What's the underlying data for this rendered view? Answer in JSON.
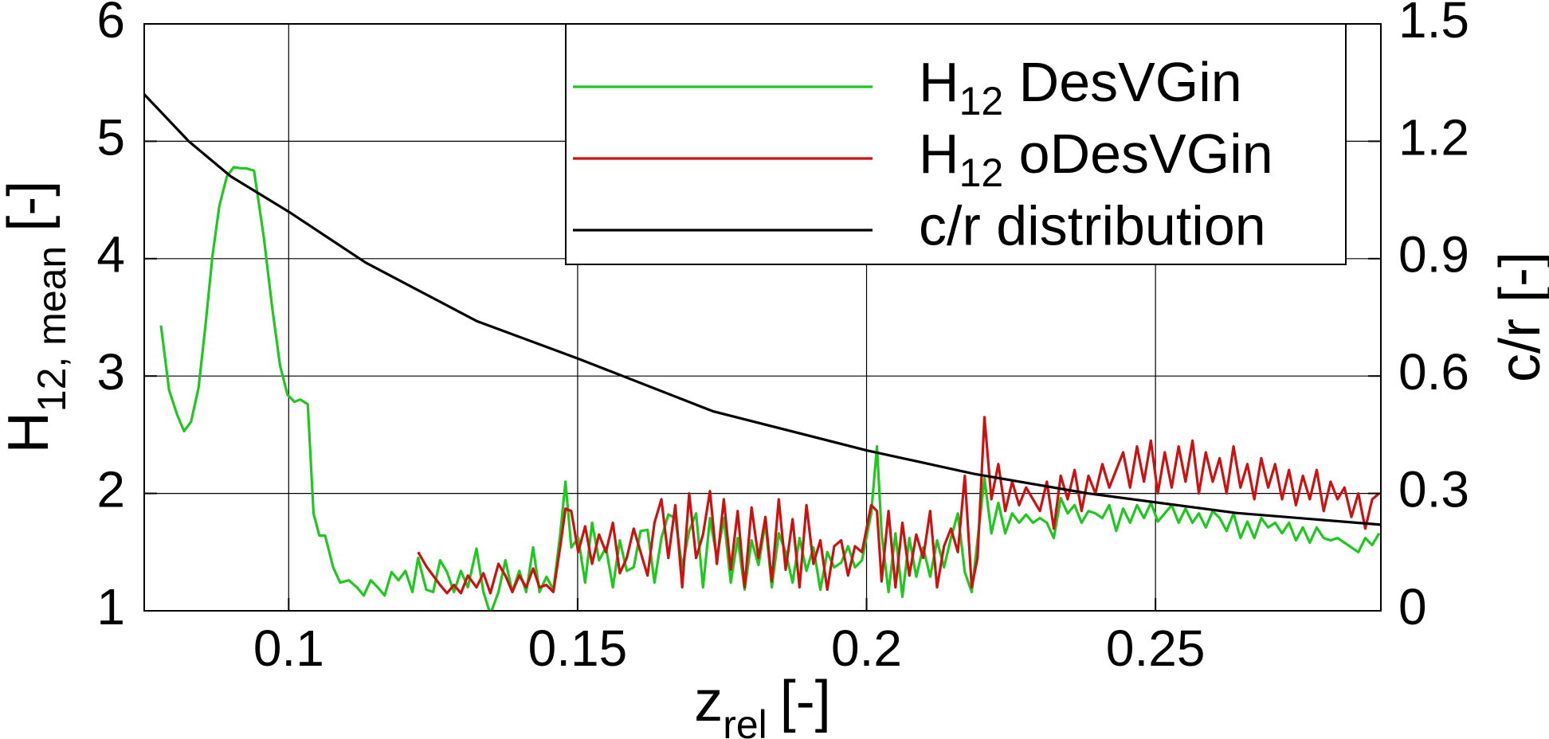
{
  "chart_data": {
    "type": "line",
    "xlabel": {
      "symbol": "z",
      "subscript": "rel",
      "unit": "[-]"
    },
    "ylabel": {
      "symbol": "H",
      "subscript": "12, mean",
      "unit": "[-]"
    },
    "y2label": "c/r [-]",
    "xlim": [
      0.075,
      0.289
    ],
    "xticks": [
      0.1,
      0.15,
      0.2,
      0.25
    ],
    "ylim": [
      1,
      6
    ],
    "yticks": [
      1,
      2,
      3,
      4,
      5,
      6
    ],
    "y2lim": [
      0,
      1.5
    ],
    "y2ticks": [
      0,
      0.3,
      0.6,
      0.9,
      1.2,
      1.5
    ],
    "grid": true,
    "legend": "top-right",
    "series": [
      {
        "name": "H12 DesVGin",
        "color": "#1ec81e",
        "axis": "y",
        "x": [
          0.0779,
          0.0793,
          0.0807,
          0.0819,
          0.0831,
          0.0844,
          0.0856,
          0.0868,
          0.088,
          0.0893,
          0.0905,
          0.0917,
          0.0926,
          0.094,
          0.0957,
          0.0971,
          0.0985,
          0.0998,
          0.101,
          0.102,
          0.1033,
          0.1043,
          0.1053,
          0.1063,
          0.1077,
          0.1089,
          0.1104,
          0.1118,
          0.113,
          0.1142,
          0.1154,
          0.1166,
          0.1178,
          0.119,
          0.1202,
          0.1214,
          0.1224,
          0.1238,
          0.125,
          0.1262,
          0.1274,
          0.1286,
          0.1298,
          0.131,
          0.1325,
          0.1337,
          0.1349,
          0.1363,
          0.1375,
          0.1387,
          0.1399,
          0.1411,
          0.1423,
          0.1434,
          0.1446,
          0.1458,
          0.147,
          0.1479,
          0.1489,
          0.1501,
          0.1513,
          0.1525,
          0.1537,
          0.1549,
          0.1561,
          0.1573,
          0.1585,
          0.1597,
          0.1609,
          0.1621,
          0.1633,
          0.1645,
          0.1657,
          0.1669,
          0.1681,
          0.1693,
          0.1705,
          0.1717,
          0.1729,
          0.1741,
          0.1753,
          0.1765,
          0.1777,
          0.1789,
          0.1801,
          0.1813,
          0.1825,
          0.1836,
          0.1848,
          0.186,
          0.1872,
          0.1884,
          0.1896,
          0.1908,
          0.192,
          0.1932,
          0.1944,
          0.1956,
          0.1968,
          0.198,
          0.1992,
          0.2008,
          0.2018,
          0.2026,
          0.2038,
          0.205,
          0.2062,
          0.2074,
          0.2086,
          0.2098,
          0.211,
          0.2122,
          0.2134,
          0.2146,
          0.2158,
          0.217,
          0.2182,
          0.2192,
          0.2204,
          0.2216,
          0.2228,
          0.224,
          0.2252,
          0.2264,
          0.2276,
          0.2288,
          0.23,
          0.2312,
          0.2324,
          0.2336,
          0.2348,
          0.236,
          0.2372,
          0.2384,
          0.2396,
          0.2408,
          0.242,
          0.2432,
          0.2444,
          0.2456,
          0.2468,
          0.248,
          0.2492,
          0.2504,
          0.2516,
          0.2528,
          0.254,
          0.2552,
          0.2564,
          0.2575,
          0.2587,
          0.2599,
          0.2611,
          0.2623,
          0.2635,
          0.2647,
          0.2659,
          0.2671,
          0.2683,
          0.2695,
          0.2707,
          0.2719,
          0.2731,
          0.2743,
          0.2755,
          0.2767,
          0.2779,
          0.2791,
          0.2803,
          0.2815,
          0.2827,
          0.2839,
          0.2851,
          0.2863,
          0.2875,
          0.2887
        ],
        "values": [
          3.43,
          2.88,
          2.67,
          2.53,
          2.61,
          2.9,
          3.43,
          4.02,
          4.45,
          4.7,
          4.78,
          4.77,
          4.77,
          4.75,
          4.18,
          3.6,
          3.09,
          2.84,
          2.78,
          2.8,
          2.76,
          1.83,
          1.64,
          1.64,
          1.37,
          1.24,
          1.26,
          1.2,
          1.13,
          1.26,
          1.2,
          1.13,
          1.33,
          1.26,
          1.34,
          1.16,
          1.45,
          1.18,
          1.16,
          1.43,
          1.33,
          1.16,
          1.34,
          1.2,
          1.53,
          1.16,
          0.97,
          1.16,
          1.43,
          1.16,
          1.34,
          1.16,
          1.54,
          1.16,
          1.29,
          1.18,
          1.66,
          2.1,
          1.54,
          1.62,
          1.24,
          1.75,
          1.43,
          1.54,
          1.2,
          1.6,
          1.34,
          1.37,
          1.68,
          1.69,
          1.24,
          1.62,
          1.82,
          1.79,
          1.37,
          1.68,
          1.83,
          1.2,
          1.79,
          1.45,
          1.79,
          1.24,
          1.62,
          1.18,
          1.6,
          1.39,
          1.75,
          1.2,
          1.66,
          1.5,
          1.24,
          1.62,
          1.34,
          1.54,
          1.18,
          1.5,
          1.37,
          1.41,
          1.55,
          1.37,
          1.43,
          1.83,
          2.4,
          1.66,
          1.16,
          1.66,
          1.12,
          1.62,
          1.29,
          1.54,
          1.29,
          1.6,
          1.37,
          1.62,
          1.83,
          1.33,
          1.16,
          1.6,
          2.13,
          1.66,
          1.92,
          1.66,
          1.83,
          1.75,
          1.82,
          1.75,
          1.79,
          1.75,
          1.62,
          1.96,
          1.83,
          1.9,
          1.75,
          1.85,
          1.83,
          1.79,
          1.9,
          1.68,
          1.87,
          1.75,
          1.9,
          1.79,
          1.92,
          1.76,
          1.83,
          1.9,
          1.75,
          1.87,
          1.75,
          1.83,
          1.71,
          1.85,
          1.79,
          1.68,
          1.83,
          1.62,
          1.76,
          1.62,
          1.79,
          1.71,
          1.75,
          1.66,
          1.75,
          1.6,
          1.71,
          1.58,
          1.71,
          1.62,
          1.6,
          1.62,
          1.58,
          1.54,
          1.5,
          1.62,
          1.56,
          1.66
        ]
      },
      {
        "name": "H12 oDesVGin",
        "color": "#cc1111",
        "axis": "y",
        "x": [
          0.1224,
          0.1238,
          0.125,
          0.1262,
          0.1274,
          0.1286,
          0.1298,
          0.131,
          0.1325,
          0.1337,
          0.1349,
          0.1363,
          0.1375,
          0.1387,
          0.1399,
          0.1411,
          0.1423,
          0.1434,
          0.1446,
          0.1458,
          0.147,
          0.1479,
          0.1489,
          0.1501,
          0.1513,
          0.1525,
          0.1537,
          0.1549,
          0.1561,
          0.1573,
          0.1585,
          0.1597,
          0.1609,
          0.1621,
          0.1633,
          0.1645,
          0.1657,
          0.1669,
          0.1681,
          0.1693,
          0.1705,
          0.1717,
          0.1729,
          0.1741,
          0.1753,
          0.1765,
          0.1777,
          0.1789,
          0.1801,
          0.1813,
          0.1825,
          0.1836,
          0.1848,
          0.186,
          0.1872,
          0.1884,
          0.1896,
          0.1908,
          0.192,
          0.1932,
          0.1944,
          0.1956,
          0.1968,
          0.198,
          0.1992,
          0.2008,
          0.2018,
          0.2026,
          0.2038,
          0.205,
          0.2062,
          0.2074,
          0.2086,
          0.2098,
          0.211,
          0.2122,
          0.2134,
          0.2146,
          0.2158,
          0.217,
          0.2182,
          0.2192,
          0.2204,
          0.2216,
          0.2228,
          0.224,
          0.2252,
          0.2264,
          0.2276,
          0.2288,
          0.23,
          0.2312,
          0.2324,
          0.2336,
          0.2348,
          0.236,
          0.2372,
          0.2384,
          0.2396,
          0.2408,
          0.242,
          0.2432,
          0.2444,
          0.2456,
          0.2468,
          0.248,
          0.2492,
          0.2504,
          0.2516,
          0.2528,
          0.254,
          0.2552,
          0.2564,
          0.2575,
          0.2587,
          0.2599,
          0.2611,
          0.2623,
          0.2635,
          0.2647,
          0.2659,
          0.2671,
          0.2683,
          0.2695,
          0.2707,
          0.2719,
          0.2731,
          0.2743,
          0.2755,
          0.2767,
          0.2779,
          0.2791,
          0.2803,
          0.2815,
          0.2827,
          0.2839,
          0.2851,
          0.2863,
          0.2875,
          0.2887
        ],
        "values": [
          1.5,
          1.38,
          1.3,
          1.22,
          1.15,
          1.22,
          1.15,
          1.3,
          1.2,
          1.32,
          1.15,
          1.4,
          1.3,
          1.16,
          1.3,
          1.2,
          1.36,
          1.2,
          1.22,
          1.16,
          1.55,
          1.87,
          1.85,
          1.5,
          1.72,
          1.4,
          1.65,
          1.5,
          1.75,
          1.32,
          1.45,
          1.7,
          1.5,
          1.3,
          1.75,
          1.95,
          1.45,
          1.9,
          1.2,
          2.0,
          1.45,
          1.65,
          2.02,
          1.4,
          1.95,
          1.35,
          1.85,
          1.2,
          1.88,
          1.45,
          1.8,
          1.25,
          1.95,
          1.35,
          1.78,
          1.2,
          1.9,
          1.4,
          1.6,
          1.18,
          1.55,
          1.6,
          1.3,
          1.55,
          1.5,
          1.9,
          1.85,
          1.25,
          1.85,
          1.2,
          1.75,
          1.3,
          1.65,
          1.45,
          1.85,
          1.2,
          1.55,
          1.7,
          1.5,
          2.15,
          1.2,
          1.45,
          2.65,
          1.95,
          2.25,
          1.85,
          2.1,
          1.9,
          2.05,
          1.95,
          1.85,
          2.1,
          1.7,
          2.15,
          1.95,
          2.2,
          1.85,
          2.15,
          2.0,
          2.25,
          2.05,
          2.2,
          2.35,
          2.05,
          2.4,
          2.1,
          2.45,
          2.0,
          2.35,
          2.05,
          2.4,
          2.1,
          2.45,
          2.0,
          2.35,
          2.1,
          2.3,
          2.0,
          2.4,
          2.05,
          2.25,
          1.95,
          2.3,
          2.05,
          2.25,
          1.95,
          2.2,
          1.9,
          2.15,
          1.95,
          2.2,
          1.85,
          2.1,
          1.95,
          2.05,
          1.8,
          2.0,
          1.7,
          1.95,
          2.0
        ]
      },
      {
        "name": "c/r distribution",
        "color": "#000000",
        "axis": "y2",
        "x": [
          0.075,
          0.0827,
          0.09,
          0.1,
          0.1133,
          0.1326,
          0.15,
          0.1734,
          0.2,
          0.2186,
          0.2383,
          0.264,
          0.289
        ],
        "values": [
          1.32,
          1.2,
          1.11,
          1.02,
          0.89,
          0.74,
          0.645,
          0.51,
          0.41,
          0.35,
          0.3,
          0.25,
          0.22
        ]
      }
    ]
  }
}
